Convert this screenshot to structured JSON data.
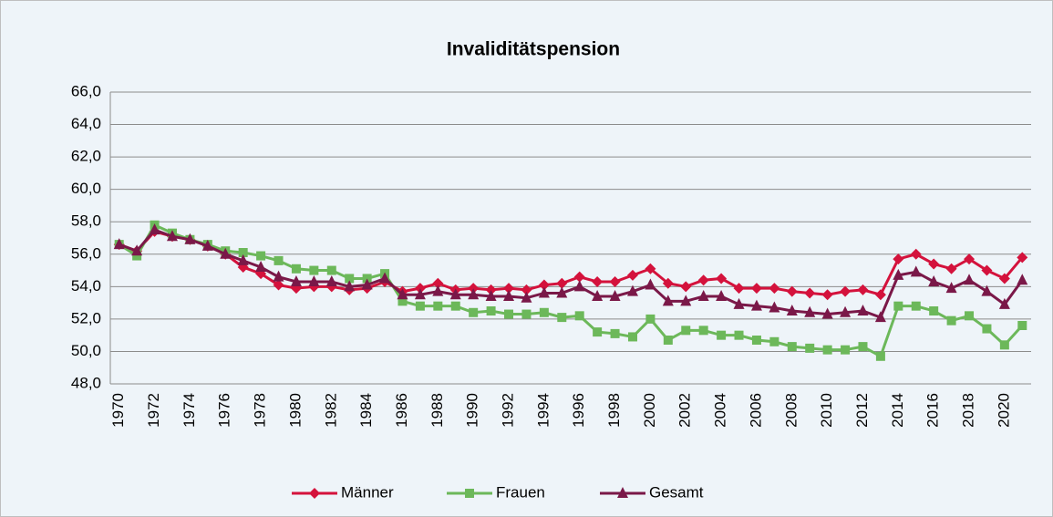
{
  "chart_data": {
    "type": "line",
    "title": "Invaliditätspension",
    "categories": [
      "1970",
      null,
      "1972",
      null,
      "1974",
      null,
      "1976",
      null,
      "1978",
      null,
      "1980",
      null,
      "1982",
      null,
      "1984",
      null,
      "1986",
      null,
      "1988",
      null,
      "1990",
      null,
      "1992",
      null,
      "1994",
      null,
      "1996",
      null,
      "1998",
      null,
      "2000",
      null,
      "2002",
      null,
      "2004",
      null,
      "2006",
      null,
      "2008",
      null,
      "2010",
      null,
      "2012",
      null,
      "2014",
      null,
      "2016",
      null,
      "2018",
      null,
      "2020",
      null
    ],
    "series": [
      {
        "name": "Männer",
        "color": "#d4123c",
        "marker": "diamond",
        "values": [
          56.6,
          56.2,
          57.4,
          57.1,
          56.9,
          56.5,
          56.0,
          55.2,
          54.8,
          54.1,
          53.9,
          54.0,
          54.0,
          53.8,
          53.9,
          54.3,
          53.7,
          53.9,
          54.2,
          53.8,
          53.9,
          53.8,
          53.9,
          53.8,
          54.1,
          54.2,
          54.6,
          54.3,
          54.3,
          54.7,
          55.1,
          54.2,
          54.0,
          54.4,
          54.5,
          53.9,
          53.9,
          53.9,
          53.7,
          53.6,
          53.5,
          53.7,
          53.8,
          53.5,
          55.7,
          56.0,
          55.4,
          55.1,
          55.7,
          55.0,
          54.5,
          55.8
        ]
      },
      {
        "name": "Frauen",
        "color": "#6cb85a",
        "marker": "square",
        "values": [
          56.6,
          55.9,
          57.8,
          57.3,
          56.9,
          56.6,
          56.2,
          56.1,
          55.9,
          55.6,
          55.1,
          55.0,
          55.0,
          54.5,
          54.5,
          54.8,
          53.1,
          52.8,
          52.8,
          52.8,
          52.4,
          52.5,
          52.3,
          52.3,
          52.4,
          52.1,
          52.2,
          51.2,
          51.1,
          50.9,
          52.0,
          50.7,
          51.3,
          51.3,
          51.0,
          51.0,
          50.7,
          50.6,
          50.3,
          50.2,
          50.1,
          50.1,
          50.3,
          49.7,
          52.8,
          52.8,
          52.5,
          51.9,
          52.2,
          51.4,
          50.4,
          51.6
        ]
      },
      {
        "name": "Gesamt",
        "color": "#7a1848",
        "marker": "triangle",
        "values": [
          56.6,
          56.2,
          57.5,
          57.1,
          56.9,
          56.5,
          56.0,
          55.6,
          55.2,
          54.6,
          54.3,
          54.3,
          54.3,
          54.0,
          54.1,
          54.5,
          53.5,
          53.5,
          53.7,
          53.5,
          53.5,
          53.4,
          53.4,
          53.3,
          53.6,
          53.6,
          54.0,
          53.4,
          53.4,
          53.7,
          54.1,
          53.1,
          53.1,
          53.4,
          53.4,
          52.9,
          52.8,
          52.7,
          52.5,
          52.4,
          52.3,
          52.4,
          52.5,
          52.1,
          54.7,
          54.9,
          54.3,
          53.9,
          54.4,
          53.7,
          52.9,
          54.4
        ]
      }
    ],
    "ylim": [
      48,
      66
    ],
    "yticks": [
      {
        "value": 48,
        "label": "48,0"
      },
      {
        "value": 50,
        "label": "50,0"
      },
      {
        "value": 52,
        "label": "52,0"
      },
      {
        "value": 54,
        "label": "54,0"
      },
      {
        "value": 56,
        "label": "56,0"
      },
      {
        "value": 58,
        "label": "58,0"
      },
      {
        "value": 60,
        "label": "60,0"
      },
      {
        "value": 62,
        "label": "62,0"
      },
      {
        "value": 64,
        "label": "64,0"
      },
      {
        "value": 66,
        "label": "66,0"
      }
    ],
    "grid": true,
    "legend": "bottom"
  }
}
